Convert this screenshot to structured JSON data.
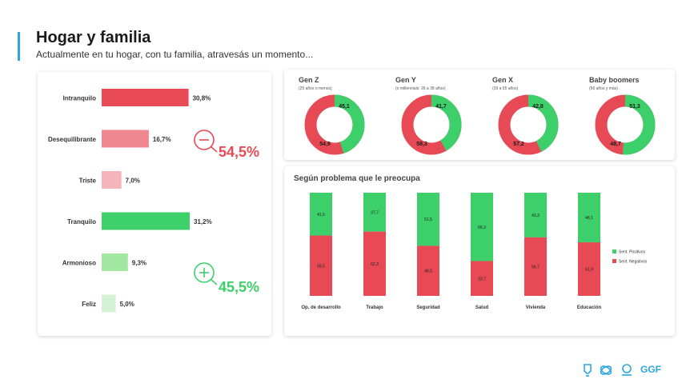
{
  "header": {
    "title": "Hogar y familia",
    "subtitle": "Actualmente en tu hogar, con tu familia, atravesás un momento..."
  },
  "colors": {
    "red": "#e84a55",
    "green": "#3ccf6a",
    "accent": "#2aa7df"
  },
  "sentiment_summary": {
    "negative_total": "54,5%",
    "positive_total": "45,5%",
    "negative_icon": "minus-circle-icon",
    "positive_icon": "plus-circle-icon"
  },
  "footer": {
    "brand": "GGF"
  },
  "chart_data": [
    {
      "type": "bar",
      "orientation": "horizontal",
      "categories": [
        "Intranquilo",
        "Desequilibrante",
        "Triste",
        "Tranquilo",
        "Armonioso",
        "Feliz"
      ],
      "values": [
        30.8,
        16.7,
        7.0,
        31.2,
        9.3,
        5.0
      ],
      "labels": [
        "30,8%",
        "16,7%",
        "7,0%",
        "31,2%",
        "9,3%",
        "5,0%"
      ],
      "colors": [
        "#e84a55",
        "#ef8790",
        "#f4b4b9",
        "#3ccf6a",
        "#a3e6a2",
        "#d4f3d5"
      ]
    },
    {
      "type": "pie",
      "donut": true,
      "charts": [
        {
          "title": "Gen Z",
          "subtitle": "(25 años o menos)",
          "positive": 45.1,
          "negative": 54.9,
          "positive_label": "45,1",
          "negative_label": "54,9"
        },
        {
          "title": "Gen Y",
          "subtitle": "(o millennials: 26 a 38 años)",
          "positive": 41.7,
          "negative": 58.3,
          "positive_label": "41,7",
          "negative_label": "58,3"
        },
        {
          "title": "Gen X",
          "subtitle": "(39 a 55 años)",
          "positive": 42.8,
          "negative": 57.2,
          "positive_label": "42,8",
          "negative_label": "57,2"
        },
        {
          "title": "Baby boomers",
          "subtitle": "(56 años y más)",
          "positive": 51.3,
          "negative": 48.7,
          "positive_label": "51,3",
          "negative_label": "48,7"
        }
      ]
    },
    {
      "type": "bar",
      "stacked": true,
      "title": "Según problema que le preocupa",
      "categories": [
        "Op. de desarrollo",
        "Trabajo",
        "Seguridad",
        "Salud",
        "Vivienda",
        "Educación"
      ],
      "series": [
        {
          "name": "Sent. Positivos",
          "values": [
            41.5,
            37.7,
            51.5,
            66.3,
            43.3,
            48.1
          ],
          "labels": [
            "41,5",
            "37,7",
            "51,5",
            "66,3",
            "43,3",
            "48,1"
          ]
        },
        {
          "name": "Sent. Negativos",
          "values": [
            58.5,
            62.3,
            48.5,
            33.7,
            56.7,
            51.9
          ],
          "labels": [
            "58,5",
            "62,3",
            "48,5",
            "33,7",
            "56,7",
            "51,9"
          ]
        }
      ]
    }
  ]
}
